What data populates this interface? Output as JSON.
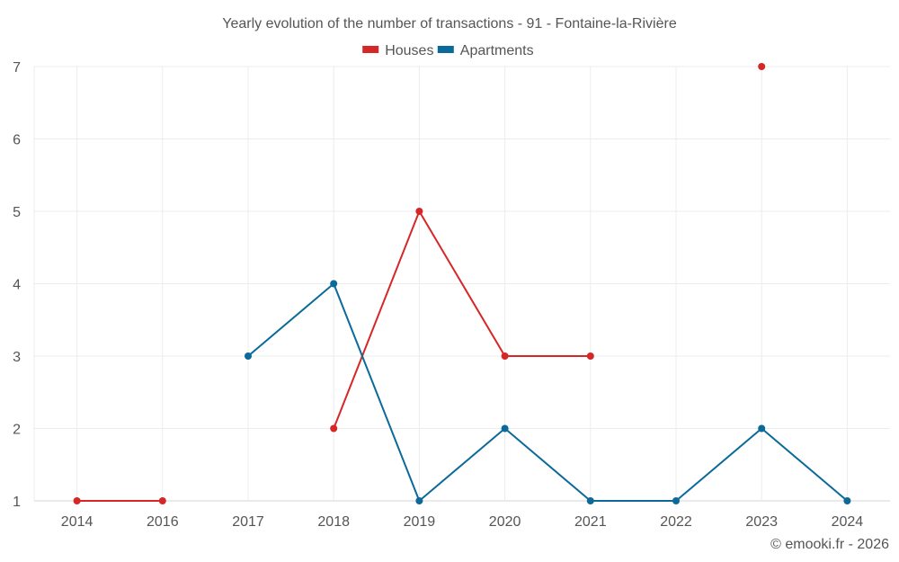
{
  "chart_data": {
    "type": "line",
    "title": "Yearly evolution of the number of transactions - 91 - Fontaine-la-Rivière",
    "categories": [
      "2014",
      "2016",
      "2017",
      "2018",
      "2019",
      "2020",
      "2021",
      "2022",
      "2023",
      "2024"
    ],
    "ylim": [
      1,
      7
    ],
    "yticks": [
      1,
      2,
      3,
      4,
      5,
      6,
      7
    ],
    "grid": true,
    "legend_position": "top-center",
    "series": [
      {
        "name": "Houses",
        "color": "#d62728",
        "values": [
          1,
          1,
          null,
          2,
          5,
          3,
          3,
          null,
          7,
          null
        ]
      },
      {
        "name": "Apartments",
        "color": "#0b6a9a",
        "values": [
          null,
          null,
          3,
          4,
          1,
          2,
          1,
          1,
          2,
          1
        ]
      }
    ]
  },
  "credit": "© emooki.fr - 2026"
}
